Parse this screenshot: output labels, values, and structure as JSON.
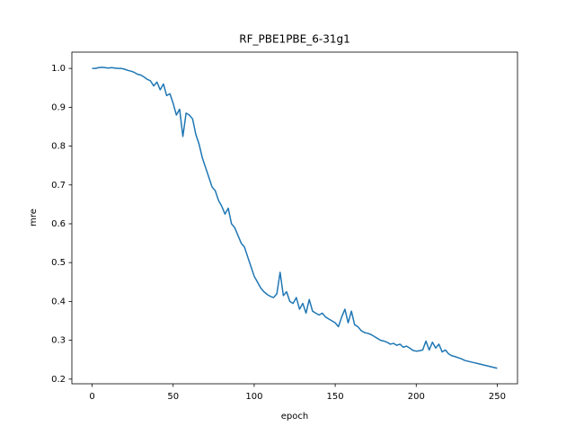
{
  "chart_data": {
    "type": "line",
    "title": "RF_PBE1PBE_6-31g1",
    "x_label": "epoch",
    "y_label": "mre",
    "x": [
      0,
      2,
      4,
      6,
      8,
      10,
      12,
      14,
      16,
      18,
      20,
      22,
      24,
      26,
      28,
      30,
      32,
      34,
      36,
      38,
      40,
      42,
      44,
      46,
      48,
      50,
      52,
      54,
      56,
      58,
      60,
      62,
      64,
      66,
      68,
      70,
      72,
      74,
      76,
      78,
      80,
      82,
      84,
      86,
      88,
      90,
      92,
      94,
      96,
      98,
      100,
      102,
      104,
      106,
      108,
      110,
      112,
      114,
      116,
      118,
      120,
      122,
      124,
      126,
      128,
      130,
      132,
      134,
      136,
      138,
      140,
      142,
      144,
      146,
      148,
      150,
      152,
      154,
      156,
      158,
      160,
      162,
      164,
      166,
      168,
      170,
      172,
      174,
      176,
      178,
      180,
      182,
      184,
      186,
      188,
      190,
      192,
      194,
      196,
      198,
      200,
      202,
      204,
      206,
      208,
      210,
      212,
      214,
      216,
      218,
      220,
      222,
      224,
      226,
      228,
      230,
      232,
      234,
      236,
      238,
      240,
      242,
      244,
      246,
      248,
      250
    ],
    "series": [
      {
        "color": "#1f77b4",
        "values": [
          1.0,
          1.0,
          1.002,
          1.003,
          1.002,
          1.001,
          1.002,
          1.001,
          1.0,
          1.0,
          0.998,
          0.995,
          0.993,
          0.99,
          0.985,
          0.983,
          0.978,
          0.972,
          0.968,
          0.955,
          0.965,
          0.945,
          0.96,
          0.93,
          0.935,
          0.91,
          0.88,
          0.895,
          0.825,
          0.885,
          0.88,
          0.87,
          0.83,
          0.805,
          0.77,
          0.745,
          0.72,
          0.695,
          0.685,
          0.66,
          0.645,
          0.625,
          0.64,
          0.6,
          0.59,
          0.57,
          0.55,
          0.54,
          0.515,
          0.49,
          0.465,
          0.45,
          0.435,
          0.425,
          0.418,
          0.413,
          0.41,
          0.42,
          0.475,
          0.415,
          0.425,
          0.4,
          0.395,
          0.41,
          0.38,
          0.395,
          0.37,
          0.405,
          0.375,
          0.37,
          0.365,
          0.37,
          0.36,
          0.355,
          0.35,
          0.345,
          0.335,
          0.36,
          0.38,
          0.345,
          0.375,
          0.34,
          0.335,
          0.325,
          0.32,
          0.318,
          0.315,
          0.31,
          0.305,
          0.3,
          0.298,
          0.295,
          0.29,
          0.292,
          0.287,
          0.29,
          0.282,
          0.285,
          0.28,
          0.274,
          0.272,
          0.273,
          0.275,
          0.298,
          0.275,
          0.295,
          0.28,
          0.29,
          0.27,
          0.275,
          0.265,
          0.26,
          0.258,
          0.255,
          0.252,
          0.248,
          0.246,
          0.244,
          0.242,
          0.24,
          0.238,
          0.236,
          0.234,
          0.232,
          0.23,
          0.228
        ]
      }
    ],
    "xlim": [
      -12.5,
      262.5
    ],
    "ylim": [
      0.188,
      1.042
    ],
    "xticks": [
      0,
      50,
      100,
      150,
      200,
      250
    ],
    "yticks": [
      0.2,
      0.3,
      0.4,
      0.5,
      0.6,
      0.7,
      0.8,
      0.9,
      {
        "value": 1,
        "label": "1.0"
      }
    ],
    "grid": false
  }
}
